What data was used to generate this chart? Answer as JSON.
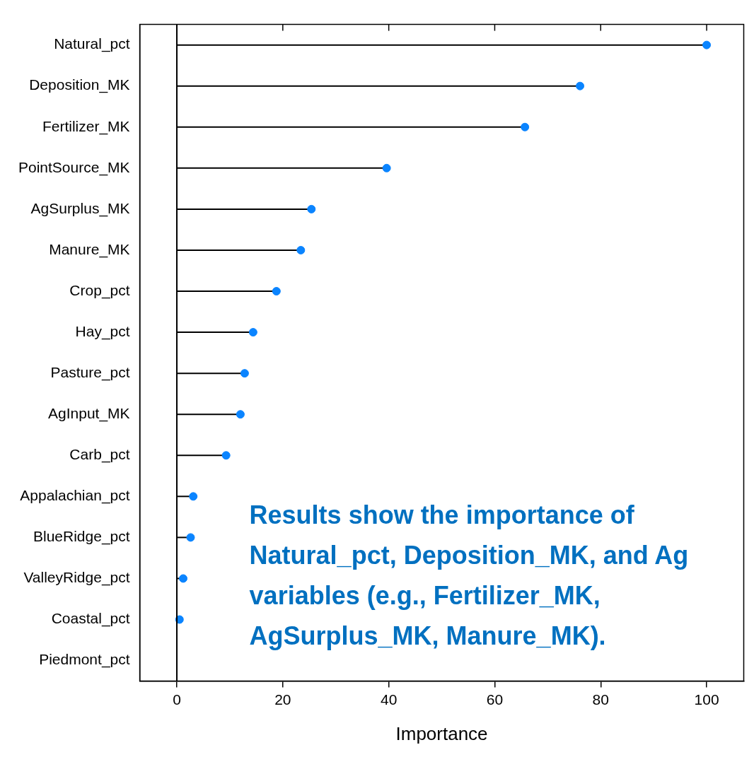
{
  "chart_data": {
    "type": "lollipop",
    "orientation": "horizontal",
    "xlabel": "Importance",
    "categories": [
      "Natural_pct",
      "Deposition_MK",
      "Fertilizer_MK",
      "PointSource_MK",
      "AgSurplus_MK",
      "Manure_MK",
      "Crop_pct",
      "Hay_pct",
      "Pasture_pct",
      "AgInput_MK",
      "Carb_pct",
      "Appalachian_pct",
      "BlueRidge_pct",
      "ValleyRidge_pct",
      "Coastal_pct",
      "Piedmont_pct"
    ],
    "series": [
      {
        "color": "#0a84ff",
        "values": [
          100,
          76.1,
          65.7,
          39.6,
          25.4,
          23.4,
          18.8,
          14.4,
          12.8,
          12.0,
          9.3,
          3.1,
          2.6,
          1.2,
          0.5,
          null
        ]
      }
    ],
    "xlim": [
      -7,
      107
    ],
    "xticks": [
      0,
      20,
      40,
      60,
      80,
      100
    ],
    "ref_lines": [
      {
        "axis": "x",
        "value": 0
      }
    ],
    "marker": "circle",
    "grid": false,
    "legend": false,
    "annotations": [
      "Results show the importance of Natural_pct, Deposition_MK, and Ag variables (e.g., Fertilizer_MK, AgSurplus_MK, Manure_MK)."
    ]
  }
}
